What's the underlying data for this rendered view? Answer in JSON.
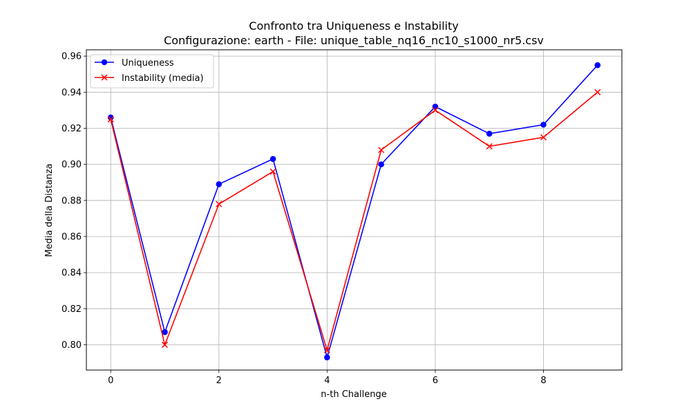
{
  "chart_data": {
    "type": "line",
    "title": "Confronto tra Uniqueness e Instability",
    "subtitle": "Configurazione: earth - File: unique_table_nq16_nc10_s1000_nr5.csv",
    "xlabel": "n-th Challenge",
    "ylabel": "Media della Distanza",
    "x": [
      0,
      1,
      2,
      3,
      4,
      5,
      6,
      7,
      8,
      9
    ],
    "xlim": [
      -0.45,
      9.45
    ],
    "ylim": [
      0.786,
      0.9635
    ],
    "x_ticks": [
      0,
      2,
      4,
      6,
      8
    ],
    "y_ticks": [
      0.8,
      0.82,
      0.84,
      0.86,
      0.88,
      0.9,
      0.92,
      0.94,
      0.96
    ],
    "x_tick_labels": [
      "0",
      "2",
      "4",
      "6",
      "8"
    ],
    "y_tick_labels": [
      "0.80",
      "0.82",
      "0.84",
      "0.86",
      "0.88",
      "0.90",
      "0.92",
      "0.94",
      "0.96"
    ],
    "grid": true,
    "legend_position": "top-left",
    "series": [
      {
        "name": "Uniqueness",
        "color": "#0000ff",
        "marker": "circle",
        "values": [
          0.926,
          0.807,
          0.889,
          0.903,
          0.793,
          0.9,
          0.932,
          0.917,
          0.922,
          0.955
        ]
      },
      {
        "name": "Instability (media)",
        "color": "#ff0000",
        "marker": "x",
        "values": [
          0.925,
          0.8,
          0.878,
          0.896,
          0.797,
          0.908,
          0.93,
          0.91,
          0.915,
          0.94
        ]
      }
    ]
  }
}
